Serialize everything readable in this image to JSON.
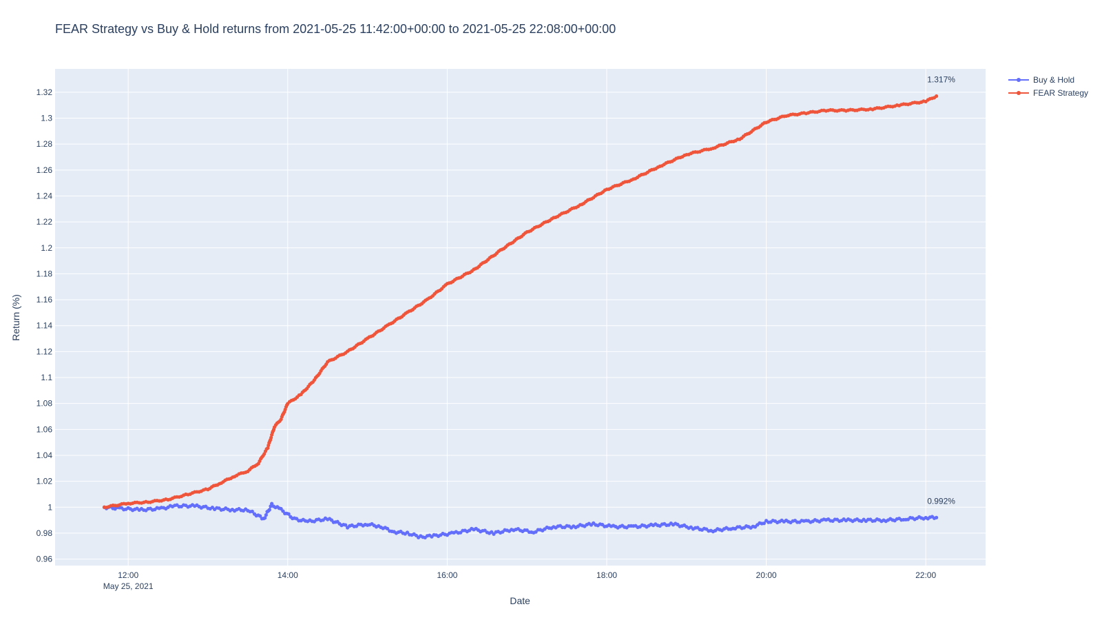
{
  "chart_data": {
    "type": "line",
    "title": "FEAR Strategy vs Buy & Hold returns from 2021-05-25 11:42:00+00:00 to 2021-05-25 22:08:00+00:00",
    "xlabel": "Date",
    "ylabel": "Return (%)",
    "xlim": [
      "2021-05-25 11:05",
      "2021-05-25 22:45"
    ],
    "ylim": [
      0.955,
      1.338
    ],
    "x_ticks": [
      {
        "value": "2021-05-25 12:00",
        "label": "12:00",
        "sublabel": "May 25, 2021"
      },
      {
        "value": "2021-05-25 14:00",
        "label": "14:00"
      },
      {
        "value": "2021-05-25 16:00",
        "label": "16:00"
      },
      {
        "value": "2021-05-25 18:00",
        "label": "18:00"
      },
      {
        "value": "2021-05-25 20:00",
        "label": "20:00"
      },
      {
        "value": "2021-05-25 22:00",
        "label": "22:00"
      }
    ],
    "y_ticks": [
      0.96,
      0.98,
      1,
      1.02,
      1.04,
      1.06,
      1.08,
      1.1,
      1.12,
      1.14,
      1.16,
      1.18,
      1.2,
      1.22,
      1.24,
      1.26,
      1.28,
      1.3,
      1.32
    ],
    "y_tick_labels": [
      "0.96",
      "0.98",
      "1",
      "1.02",
      "1.04",
      "1.06",
      "1.08",
      "1.1",
      "1.12",
      "1.14",
      "1.16",
      "1.18",
      "1.2",
      "1.22",
      "1.24",
      "1.26",
      "1.28",
      "1.3",
      "1.32"
    ],
    "grid": true,
    "legend": "top-right outside",
    "series": [
      {
        "name": "Buy & Hold",
        "color": "#636efa",
        "points": [
          [
            "2021-05-25 11:42",
            1.0
          ],
          [
            "2021-05-25 11:55",
            0.999
          ],
          [
            "2021-05-25 12:10",
            0.998
          ],
          [
            "2021-05-25 12:25",
            0.999
          ],
          [
            "2021-05-25 12:35",
            1.001
          ],
          [
            "2021-05-25 12:50",
            1.001
          ],
          [
            "2021-05-25 13:05",
            0.999
          ],
          [
            "2021-05-25 13:20",
            0.998
          ],
          [
            "2021-05-25 13:30",
            0.998
          ],
          [
            "2021-05-25 13:35",
            0.995
          ],
          [
            "2021-05-25 13:42",
            0.991
          ],
          [
            "2021-05-25 13:48",
            1.002
          ],
          [
            "2021-05-25 13:55",
            0.998
          ],
          [
            "2021-05-25 14:05",
            0.991
          ],
          [
            "2021-05-25 14:15",
            0.989
          ],
          [
            "2021-05-25 14:30",
            0.991
          ],
          [
            "2021-05-25 14:45",
            0.985
          ],
          [
            "2021-05-25 15:00",
            0.987
          ],
          [
            "2021-05-25 15:10",
            0.985
          ],
          [
            "2021-05-25 15:20",
            0.981
          ],
          [
            "2021-05-25 15:30",
            0.98
          ],
          [
            "2021-05-25 15:40",
            0.977
          ],
          [
            "2021-05-25 15:50",
            0.978
          ],
          [
            "2021-05-25 16:05",
            0.98
          ],
          [
            "2021-05-25 16:20",
            0.983
          ],
          [
            "2021-05-25 16:35",
            0.98
          ],
          [
            "2021-05-25 16:50",
            0.983
          ],
          [
            "2021-05-25 17:05",
            0.981
          ],
          [
            "2021-05-25 17:20",
            0.985
          ],
          [
            "2021-05-25 17:35",
            0.985
          ],
          [
            "2021-05-25 17:50",
            0.987
          ],
          [
            "2021-05-25 18:05",
            0.985
          ],
          [
            "2021-05-25 18:20",
            0.985
          ],
          [
            "2021-05-25 18:35",
            0.986
          ],
          [
            "2021-05-25 18:50",
            0.987
          ],
          [
            "2021-05-25 19:05",
            0.984
          ],
          [
            "2021-05-25 19:20",
            0.982
          ],
          [
            "2021-05-25 19:35",
            0.984
          ],
          [
            "2021-05-25 19:50",
            0.985
          ],
          [
            "2021-05-25 20:00",
            0.989
          ],
          [
            "2021-05-25 20:15",
            0.989
          ],
          [
            "2021-05-25 20:30",
            0.989
          ],
          [
            "2021-05-25 20:45",
            0.99
          ],
          [
            "2021-05-25 21:00",
            0.99
          ],
          [
            "2021-05-25 21:15",
            0.99
          ],
          [
            "2021-05-25 21:30",
            0.99
          ],
          [
            "2021-05-25 21:45",
            0.991
          ],
          [
            "2021-05-25 22:00",
            0.992
          ],
          [
            "2021-05-25 22:08",
            0.992
          ]
        ]
      },
      {
        "name": "FEAR Strategy",
        "color": "#ef553b",
        "points": [
          [
            "2021-05-25 11:42",
            1.0
          ],
          [
            "2021-05-25 12:00",
            1.003
          ],
          [
            "2021-05-25 12:15",
            1.004
          ],
          [
            "2021-05-25 12:30",
            1.006
          ],
          [
            "2021-05-25 12:45",
            1.01
          ],
          [
            "2021-05-25 13:00",
            1.014
          ],
          [
            "2021-05-25 13:10",
            1.019
          ],
          [
            "2021-05-25 13:20",
            1.024
          ],
          [
            "2021-05-25 13:30",
            1.028
          ],
          [
            "2021-05-25 13:38",
            1.034
          ],
          [
            "2021-05-25 13:45",
            1.046
          ],
          [
            "2021-05-25 13:50",
            1.062
          ],
          [
            "2021-05-25 13:55",
            1.068
          ],
          [
            "2021-05-25 14:00",
            1.08
          ],
          [
            "2021-05-25 14:10",
            1.087
          ],
          [
            "2021-05-25 14:20",
            1.098
          ],
          [
            "2021-05-25 14:30",
            1.112
          ],
          [
            "2021-05-25 14:45",
            1.12
          ],
          [
            "2021-05-25 15:00",
            1.13
          ],
          [
            "2021-05-25 15:15",
            1.14
          ],
          [
            "2021-05-25 15:30",
            1.15
          ],
          [
            "2021-05-25 15:45",
            1.16
          ],
          [
            "2021-05-25 16:00",
            1.172
          ],
          [
            "2021-05-25 16:20",
            1.183
          ],
          [
            "2021-05-25 16:40",
            1.198
          ],
          [
            "2021-05-25 17:00",
            1.212
          ],
          [
            "2021-05-25 17:20",
            1.223
          ],
          [
            "2021-05-25 17:40",
            1.233
          ],
          [
            "2021-05-25 18:00",
            1.245
          ],
          [
            "2021-05-25 18:20",
            1.253
          ],
          [
            "2021-05-25 18:40",
            1.263
          ],
          [
            "2021-05-25 19:00",
            1.272
          ],
          [
            "2021-05-25 19:20",
            1.277
          ],
          [
            "2021-05-25 19:40",
            1.284
          ],
          [
            "2021-05-25 20:00",
            1.297
          ],
          [
            "2021-05-25 20:15",
            1.302
          ],
          [
            "2021-05-25 20:30",
            1.304
          ],
          [
            "2021-05-25 20:45",
            1.306
          ],
          [
            "2021-05-25 21:00",
            1.306
          ],
          [
            "2021-05-25 21:20",
            1.307
          ],
          [
            "2021-05-25 21:40",
            1.31
          ],
          [
            "2021-05-25 22:00",
            1.313
          ],
          [
            "2021-05-25 22:08",
            1.317
          ]
        ]
      }
    ],
    "annotations": [
      {
        "text": "1.317%",
        "x": "2021-05-25 22:08",
        "y": 1.317,
        "series": "FEAR Strategy"
      },
      {
        "text": "0.992%",
        "x": "2021-05-25 22:08",
        "y": 0.992,
        "series": "Buy & Hold"
      }
    ]
  }
}
